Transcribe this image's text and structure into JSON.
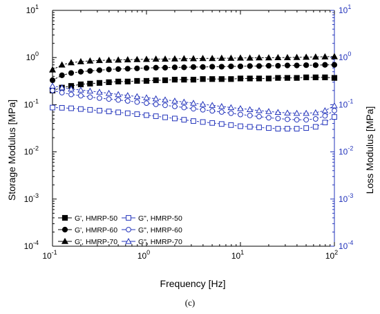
{
  "chart_data": {
    "type": "line",
    "caption": "(c)",
    "xlabel": "Frequency [Hz]",
    "ylabel": "Storage Modulus [MPa]",
    "y2label": "Loss Modulus [MPa]",
    "xscale": "log",
    "yscale": "log",
    "xlim": [
      0.1,
      100
    ],
    "ylim": [
      0.0001,
      10
    ],
    "y2lim": [
      0.0001,
      10
    ],
    "grid": false,
    "legend_position": "bottom-left",
    "colors": {
      "storage": "#000000",
      "loss": "#2233bb",
      "axis": "#000000",
      "right_axis": "#2233bb"
    },
    "x_ticks": [
      {
        "value": 0.1,
        "base": "10",
        "exp": "-1"
      },
      {
        "value": 1,
        "base": "10",
        "exp": "0"
      },
      {
        "value": 10,
        "base": "10",
        "exp": "1"
      },
      {
        "value": 100,
        "base": "10",
        "exp": "2"
      }
    ],
    "y_ticks": [
      {
        "value": 0.0001,
        "base": "10",
        "exp": "-4"
      },
      {
        "value": 0.001,
        "base": "10",
        "exp": "-3"
      },
      {
        "value": 0.01,
        "base": "10",
        "exp": "-2"
      },
      {
        "value": 0.1,
        "base": "10",
        "exp": "-1"
      },
      {
        "value": 1,
        "base": "10",
        "exp": "0"
      },
      {
        "value": 10,
        "base": "10",
        "exp": "1"
      }
    ],
    "x": [
      0.1,
      0.126,
      0.158,
      0.2,
      0.251,
      0.316,
      0.398,
      0.501,
      0.631,
      0.794,
      1,
      1.26,
      1.58,
      2,
      2.51,
      3.16,
      3.98,
      5.01,
      6.31,
      7.94,
      10,
      12.6,
      15.8,
      20,
      25.1,
      31.6,
      39.8,
      50.1,
      63.1,
      79.4,
      100
    ],
    "series": [
      {
        "name": "G', HMRP-50",
        "axis": "left",
        "marker": "square",
        "filled": true,
        "color": "#000000",
        "values": [
          0.2,
          0.23,
          0.25,
          0.27,
          0.28,
          0.29,
          0.3,
          0.31,
          0.31,
          0.32,
          0.32,
          0.33,
          0.33,
          0.34,
          0.34,
          0.34,
          0.35,
          0.35,
          0.35,
          0.35,
          0.36,
          0.36,
          0.36,
          0.36,
          0.37,
          0.37,
          0.37,
          0.38,
          0.38,
          0.38,
          0.37
        ]
      },
      {
        "name": "G', HMRP-60",
        "axis": "left",
        "marker": "circle",
        "filled": true,
        "color": "#000000",
        "values": [
          0.33,
          0.42,
          0.47,
          0.5,
          0.52,
          0.54,
          0.56,
          0.57,
          0.58,
          0.59,
          0.6,
          0.61,
          0.61,
          0.62,
          0.62,
          0.63,
          0.63,
          0.64,
          0.64,
          0.65,
          0.65,
          0.66,
          0.66,
          0.67,
          0.67,
          0.68,
          0.68,
          0.69,
          0.69,
          0.7,
          0.7
        ]
      },
      {
        "name": "G', HMRP-70",
        "axis": "left",
        "marker": "triangle",
        "filled": true,
        "color": "#000000",
        "values": [
          0.55,
          0.7,
          0.78,
          0.82,
          0.85,
          0.87,
          0.88,
          0.89,
          0.9,
          0.91,
          0.92,
          0.93,
          0.93,
          0.94,
          0.95,
          0.95,
          0.96,
          0.96,
          0.97,
          0.97,
          0.98,
          0.98,
          0.99,
          0.99,
          1.0,
          1.0,
          1.01,
          1.02,
          1.03,
          1.04,
          1.05
        ]
      },
      {
        "name": "G\", HMRP-50",
        "axis": "right",
        "marker": "square",
        "filled": false,
        "color": "#2233bb",
        "values": [
          0.087,
          0.086,
          0.084,
          0.081,
          0.078,
          0.075,
          0.072,
          0.069,
          0.066,
          0.063,
          0.06,
          0.057,
          0.054,
          0.051,
          0.048,
          0.045,
          0.043,
          0.041,
          0.039,
          0.037,
          0.035,
          0.034,
          0.033,
          0.032,
          0.031,
          0.031,
          0.031,
          0.032,
          0.034,
          0.042,
          0.055
        ]
      },
      {
        "name": "G\", HMRP-60",
        "axis": "right",
        "marker": "circle",
        "filled": false,
        "color": "#2233bb",
        "values": [
          0.2,
          0.18,
          0.165,
          0.155,
          0.145,
          0.138,
          0.132,
          0.126,
          0.12,
          0.114,
          0.108,
          0.102,
          0.097,
          0.092,
          0.087,
          0.082,
          0.078,
          0.074,
          0.07,
          0.066,
          0.062,
          0.059,
          0.056,
          0.053,
          0.051,
          0.049,
          0.048,
          0.048,
          0.05,
          0.058,
          0.075
        ]
      },
      {
        "name": "G\", HMRP-70",
        "axis": "right",
        "marker": "triangle",
        "filled": false,
        "color": "#2233bb",
        "values": [
          0.25,
          0.23,
          0.215,
          0.205,
          0.195,
          0.185,
          0.175,
          0.165,
          0.157,
          0.149,
          0.141,
          0.134,
          0.127,
          0.12,
          0.114,
          0.108,
          0.102,
          0.097,
          0.092,
          0.087,
          0.083,
          0.079,
          0.075,
          0.072,
          0.069,
          0.067,
          0.066,
          0.066,
          0.068,
          0.075,
          0.095
        ]
      }
    ]
  }
}
